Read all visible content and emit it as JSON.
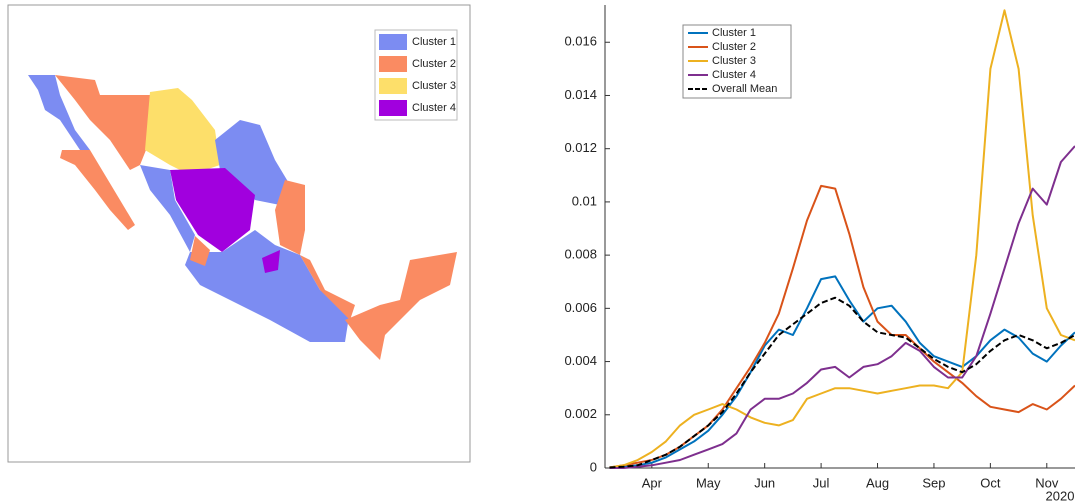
{
  "map": {
    "legend": [
      {
        "name": "Cluster 1",
        "color": "#7c8cf2"
      },
      {
        "name": "Cluster 2",
        "color": "#fa8b62"
      },
      {
        "name": "Cluster 3",
        "color": "#fddf6a"
      },
      {
        "name": "Cluster 4",
        "color": "#a100de"
      }
    ]
  },
  "chart_data": {
    "type": "line",
    "x": [
      3.25,
      3.5,
      3.75,
      4,
      4.25,
      4.5,
      4.75,
      5,
      5.25,
      5.5,
      5.75,
      6,
      6.25,
      6.5,
      6.75,
      7,
      7.25,
      7.5,
      7.75,
      8,
      8.25,
      8.5,
      8.75,
      9,
      9.25,
      9.5,
      9.75,
      10,
      10.25,
      10.5,
      10.75,
      11,
      11.25,
      11.5
    ],
    "xlim": [
      3.17,
      11.5
    ],
    "xticks": [
      {
        "value": 4,
        "label": "Apr"
      },
      {
        "value": 5,
        "label": "May"
      },
      {
        "value": 6,
        "label": "Jun"
      },
      {
        "value": 7,
        "label": "Jul"
      },
      {
        "value": 8,
        "label": "Aug"
      },
      {
        "value": 9,
        "label": "Sep"
      },
      {
        "value": 10,
        "label": "Oct"
      },
      {
        "value": 11,
        "label": "Nov"
      }
    ],
    "x_annotation": "2020",
    "ylim": [
      0,
      0.0174
    ],
    "yticks": [
      0,
      0.002,
      0.004,
      0.006,
      0.008,
      0.01,
      0.012,
      0.014,
      0.016
    ],
    "legend": "upper-left",
    "series": [
      {
        "name": "Cluster 1",
        "color": "#0072bd",
        "linestyle": "solid",
        "values": [
          2e-05,
          5e-05,
          0.0001,
          0.0002,
          0.0004,
          0.0007,
          0.001,
          0.0014,
          0.002,
          0.0027,
          0.0036,
          0.0046,
          0.0052,
          0.005,
          0.006,
          0.0071,
          0.0072,
          0.0063,
          0.0055,
          0.006,
          0.0061,
          0.0055,
          0.0047,
          0.0042,
          0.004,
          0.0038,
          0.0042,
          0.0048,
          0.0052,
          0.0049,
          0.0043,
          0.004,
          0.0046,
          0.0051
        ]
      },
      {
        "name": "Cluster 2",
        "color": "#d95319",
        "linestyle": "solid",
        "values": [
          2e-05,
          0.0001,
          0.0002,
          0.0003,
          0.0005,
          0.0008,
          0.0012,
          0.0016,
          0.0022,
          0.003,
          0.0038,
          0.0047,
          0.0058,
          0.0075,
          0.0093,
          0.0106,
          0.0105,
          0.0088,
          0.0068,
          0.0055,
          0.005,
          0.005,
          0.0045,
          0.004,
          0.0036,
          0.0032,
          0.0027,
          0.0023,
          0.0022,
          0.0021,
          0.0024,
          0.0022,
          0.0026,
          0.0031
        ]
      },
      {
        "name": "Cluster 3",
        "color": "#edb120",
        "linestyle": "solid",
        "values": [
          2e-05,
          0.0001,
          0.0003,
          0.0006,
          0.001,
          0.0016,
          0.002,
          0.0022,
          0.0024,
          0.0022,
          0.0019,
          0.0017,
          0.0016,
          0.0018,
          0.0026,
          0.0028,
          0.003,
          0.003,
          0.0029,
          0.0028,
          0.0029,
          0.003,
          0.0031,
          0.0031,
          0.003,
          0.0036,
          0.008,
          0.015,
          0.0172,
          0.015,
          0.0095,
          0.006,
          0.005,
          0.0048
        ]
      },
      {
        "name": "Cluster 4",
        "color": "#7e2f8e",
        "linestyle": "solid",
        "values": [
          0,
          0,
          5e-05,
          0.0001,
          0.0002,
          0.0003,
          0.0005,
          0.0007,
          0.0009,
          0.0013,
          0.0022,
          0.0026,
          0.0026,
          0.0028,
          0.0032,
          0.0037,
          0.0038,
          0.0034,
          0.0038,
          0.0039,
          0.0042,
          0.0047,
          0.0044,
          0.0038,
          0.0034,
          0.0034,
          0.0042,
          0.0058,
          0.0075,
          0.0092,
          0.0105,
          0.0099,
          0.0115,
          0.0121
        ]
      },
      {
        "name": "Overall Mean",
        "color": "#000000",
        "linestyle": "dashed",
        "values": [
          2e-05,
          5e-05,
          0.0001,
          0.0003,
          0.0005,
          0.0008,
          0.0012,
          0.0016,
          0.0021,
          0.0028,
          0.0036,
          0.0043,
          0.005,
          0.0054,
          0.0058,
          0.0062,
          0.0064,
          0.0061,
          0.0055,
          0.0051,
          0.005,
          0.0049,
          0.0045,
          0.0041,
          0.0038,
          0.0036,
          0.0039,
          0.0044,
          0.0048,
          0.005,
          0.0048,
          0.0045,
          0.0047,
          0.005
        ]
      }
    ]
  }
}
